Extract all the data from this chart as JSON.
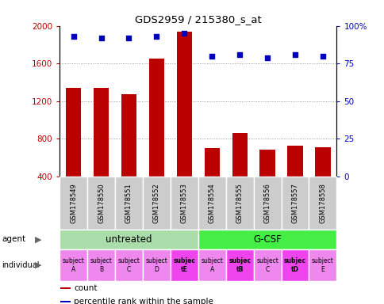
{
  "title": "GDS2959 / 215380_s_at",
  "samples": [
    "GSM178549",
    "GSM178550",
    "GSM178551",
    "GSM178552",
    "GSM178553",
    "GSM178554",
    "GSM178555",
    "GSM178556",
    "GSM178557",
    "GSM178558"
  ],
  "counts": [
    1340,
    1340,
    1270,
    1650,
    1940,
    700,
    860,
    680,
    730,
    710
  ],
  "percentile_ranks": [
    93,
    92,
    92,
    93,
    95,
    80,
    81,
    79,
    81,
    80
  ],
  "ylim_left": [
    400,
    2000
  ],
  "ylim_right": [
    0,
    100
  ],
  "yticks_left": [
    400,
    800,
    1200,
    1600,
    2000
  ],
  "yticks_right": [
    0,
    25,
    50,
    75,
    100
  ],
  "bar_color": "#bb0000",
  "dot_color": "#0000bb",
  "agent_groups": [
    {
      "label": "untreated",
      "color": "#aaddaa",
      "start": 0,
      "end": 5
    },
    {
      "label": "G-CSF",
      "color": "#44ee44",
      "start": 5,
      "end": 10
    }
  ],
  "individuals": [
    {
      "label": "subject\nA",
      "color": "#ee88ee",
      "bold": false
    },
    {
      "label": "subject\nB",
      "color": "#ee88ee",
      "bold": false
    },
    {
      "label": "subject\nC",
      "color": "#ee88ee",
      "bold": false
    },
    {
      "label": "subject\nD",
      "color": "#ee88ee",
      "bold": false
    },
    {
      "label": "subjec\ntE",
      "color": "#ee44ee",
      "bold": true
    },
    {
      "label": "subject\nA",
      "color": "#ee88ee",
      "bold": false
    },
    {
      "label": "subjec\ntB",
      "color": "#ee44ee",
      "bold": true
    },
    {
      "label": "subject\nC",
      "color": "#ee88ee",
      "bold": false
    },
    {
      "label": "subjec\ntD",
      "color": "#ee44ee",
      "bold": true
    },
    {
      "label": "subject\nE",
      "color": "#ee88ee",
      "bold": false
    }
  ],
  "legend_items": [
    {
      "label": "count",
      "color": "#bb0000"
    },
    {
      "label": "percentile rank within the sample",
      "color": "#0000bb"
    }
  ],
  "grid_color": "#888888",
  "tick_label_bg": "#cccccc"
}
